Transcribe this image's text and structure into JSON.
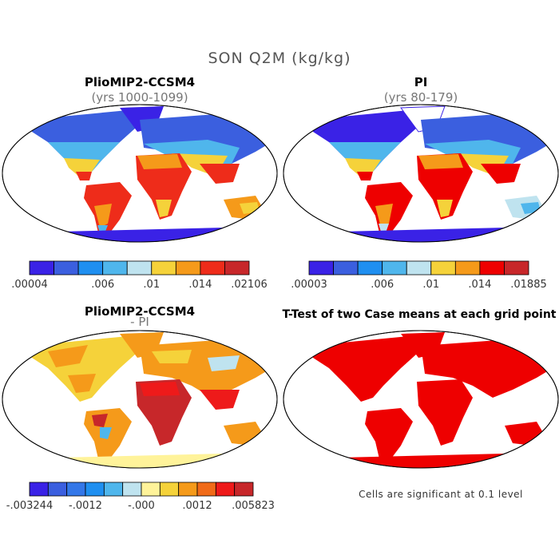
{
  "figure": {
    "title": "SON Q2M (kg/kg)",
    "footnote": "Cells are significant at 0.1 level"
  },
  "panels": {
    "p1": {
      "title": "PlioMIP2-CCSM4",
      "subtitle": "(yrs 1000-1099)"
    },
    "p2": {
      "title": "PI",
      "subtitle": "(yrs 80-179)"
    },
    "p3": {
      "title": "PlioMIP2-CCSM4",
      "subtitle": "- PI"
    },
    "p4": {
      "title": "T-Test of two Case means at each grid point"
    }
  },
  "colorbars": {
    "cb1": {
      "colors": [
        "#3a22e6",
        "#3b5fdf",
        "#1f8ff0",
        "#4fb6ec",
        "#bfe3ef",
        "#f5d23a",
        "#f59a1a",
        "#ee2c1a",
        "#c7272a"
      ],
      "labels": [
        ".00004",
        ".006",
        ".01",
        ".014",
        ".02106"
      ]
    },
    "cb2": {
      "colors": [
        "#3a22e6",
        "#3b5fdf",
        "#1f8ff0",
        "#4fb6ec",
        "#bfe3ef",
        "#f5d23a",
        "#f59a1a",
        "#ee0000",
        "#c7272a"
      ],
      "labels": [
        ".00003",
        ".006",
        ".01",
        ".014",
        ".01885"
      ]
    },
    "cb3": {
      "colors": [
        "#3a22e6",
        "#3b5fdf",
        "#3377e8",
        "#1f8ff0",
        "#4fb6ec",
        "#bfe3ef",
        "#fff39a",
        "#f5d23a",
        "#f59a1a",
        "#f06a18",
        "#ee1a1a",
        "#c7272a"
      ],
      "labels": [
        "-.003244",
        "-.0012",
        "-.000",
        ".0012",
        ".005823"
      ]
    }
  },
  "map_colors": {
    "ocean": "#ffffff",
    "outline": "#000000",
    "significant": "#ee0000"
  }
}
